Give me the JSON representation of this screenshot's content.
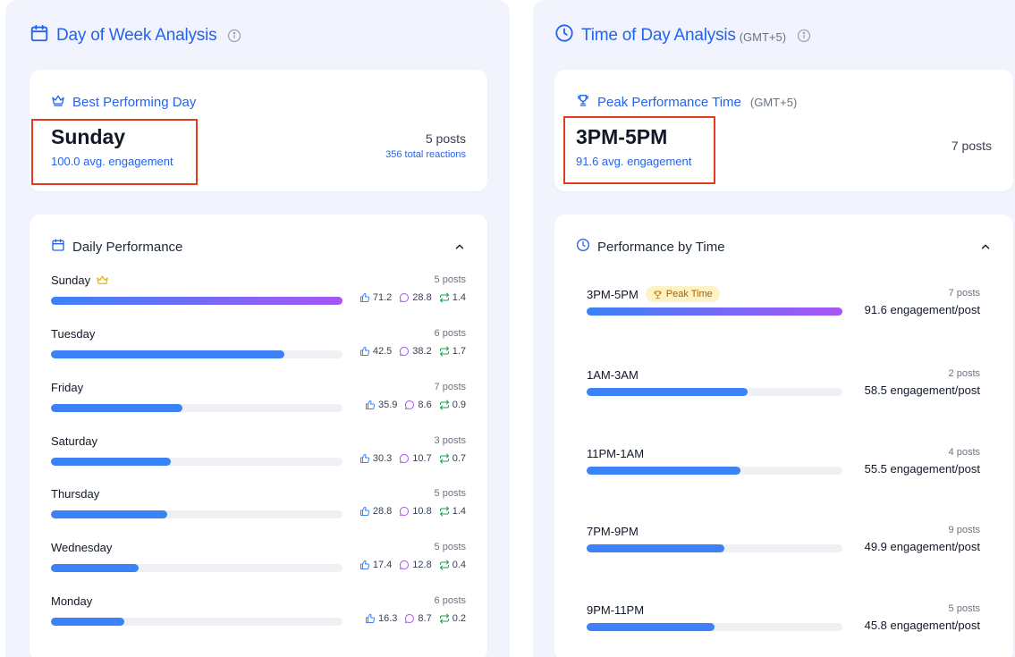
{
  "colors": {
    "accent": "#2563eb",
    "bar": "#3b82f6",
    "bar_gradient_end": "#a855f7",
    "highlight_box": "#e23b1f",
    "peak_badge_bg": "#fdf3c7"
  },
  "day_panel": {
    "title": "Day of Week Analysis",
    "title_icon": "calendar-icon",
    "best": {
      "label": "Best Performing Day",
      "label_icon": "crown-icon",
      "day": "Sunday",
      "avg": "100.0 avg. engagement",
      "posts": "5 posts",
      "reactions": "356 total reactions"
    },
    "daily": {
      "title": "Daily Performance",
      "rows": [
        {
          "day": "Sunday",
          "posts": "5 posts",
          "likes": "71.2",
          "comments": "28.8",
          "shares": "1.4",
          "fraction": 1.0,
          "crown": true
        },
        {
          "day": "Tuesday",
          "posts": "6 posts",
          "likes": "42.5",
          "comments": "38.2",
          "shares": "1.7",
          "fraction": 0.8,
          "crown": false
        },
        {
          "day": "Friday",
          "posts": "7 posts",
          "likes": "35.9",
          "comments": "8.6",
          "shares": "0.9",
          "fraction": 0.45,
          "crown": false
        },
        {
          "day": "Saturday",
          "posts": "3 posts",
          "likes": "30.3",
          "comments": "10.7",
          "shares": "0.7",
          "fraction": 0.41,
          "crown": false
        },
        {
          "day": "Thursday",
          "posts": "5 posts",
          "likes": "28.8",
          "comments": "10.8",
          "shares": "1.4",
          "fraction": 0.4,
          "crown": false
        },
        {
          "day": "Wednesday",
          "posts": "5 posts",
          "likes": "17.4",
          "comments": "12.8",
          "shares": "0.4",
          "fraction": 0.3,
          "crown": false
        },
        {
          "day": "Monday",
          "posts": "6 posts",
          "likes": "16.3",
          "comments": "8.7",
          "shares": "0.2",
          "fraction": 0.25,
          "crown": false
        }
      ]
    }
  },
  "time_panel": {
    "title": "Time of Day Analysis",
    "timezone": "(GMT+5)",
    "title_icon": "clock-icon",
    "peak": {
      "label": "Peak Performance Time",
      "label_icon": "trophy-icon",
      "timezone": "(GMT+5)",
      "slot": "3PM-5PM",
      "avg": "91.6 avg. engagement",
      "posts": "7 posts"
    },
    "by_time": {
      "title": "Performance by Time",
      "badge": "Peak Time",
      "rows": [
        {
          "slot": "3PM-5PM",
          "posts": "7 posts",
          "engagement": "91.6 engagement/post",
          "fraction": 1.0,
          "peak": true
        },
        {
          "slot": "1AM-3AM",
          "posts": "2 posts",
          "engagement": "58.5 engagement/post",
          "fraction": 0.63,
          "peak": false
        },
        {
          "slot": "11PM-1AM",
          "posts": "4 posts",
          "engagement": "55.5 engagement/post",
          "fraction": 0.6,
          "peak": false
        },
        {
          "slot": "7PM-9PM",
          "posts": "9 posts",
          "engagement": "49.9 engagement/post",
          "fraction": 0.54,
          "peak": false
        },
        {
          "slot": "9PM-11PM",
          "posts": "5 posts",
          "engagement": "45.8 engagement/post",
          "fraction": 0.5,
          "peak": false
        }
      ]
    }
  }
}
